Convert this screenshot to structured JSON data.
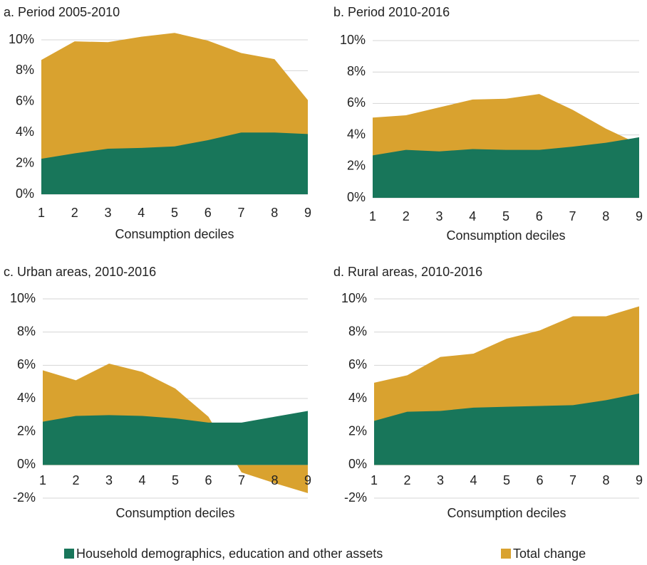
{
  "chart_data": [
    {
      "type": "area",
      "title": "a. Period 2005-2010",
      "xlabel": "Consumption deciles",
      "x": [
        1,
        2,
        3,
        4,
        5,
        6,
        7,
        8,
        9
      ],
      "xlim": [
        1,
        9
      ],
      "xticks": [
        1,
        2,
        3,
        4,
        5,
        6,
        7,
        8,
        9
      ],
      "ylim": [
        0,
        10
      ],
      "yticks": [
        {
          "value": 0,
          "label": "0%"
        },
        {
          "value": 2,
          "label": "2%"
        },
        {
          "value": 4,
          "label": "4%"
        },
        {
          "value": 6,
          "label": "6%"
        },
        {
          "value": 8,
          "label": "8%"
        },
        {
          "value": 10,
          "label": "10%"
        }
      ],
      "grid": true,
      "series": [
        {
          "name": "Household demographics, education and other assets",
          "color": "#18765a",
          "values": [
            2.3,
            2.65,
            2.95,
            3.0,
            3.1,
            3.5,
            4.0,
            4.0,
            3.9
          ]
        },
        {
          "name": "Total change",
          "color": "#d9a22f",
          "values": [
            8.7,
            9.9,
            9.85,
            10.2,
            10.45,
            9.95,
            9.15,
            8.75,
            6.1
          ]
        }
      ]
    },
    {
      "type": "area",
      "title": "b. Period 2010-2016",
      "xlabel": "Consumption deciles",
      "x": [
        1,
        2,
        3,
        4,
        5,
        6,
        7,
        8,
        9
      ],
      "xlim": [
        1,
        9
      ],
      "xticks": [
        1,
        2,
        3,
        4,
        5,
        6,
        7,
        8,
        9
      ],
      "ylim": [
        0,
        10
      ],
      "yticks": [
        {
          "value": 0,
          "label": "0%"
        },
        {
          "value": 2,
          "label": "2%"
        },
        {
          "value": 4,
          "label": "4%"
        },
        {
          "value": 6,
          "label": "6%"
        },
        {
          "value": 8,
          "label": "8%"
        },
        {
          "value": 10,
          "label": "10%"
        }
      ],
      "grid": true,
      "series": [
        {
          "name": "Household demographics, education and other assets",
          "color": "#18765a",
          "values": [
            2.7,
            3.05,
            2.95,
            3.1,
            3.05,
            3.05,
            3.25,
            3.5,
            3.85
          ]
        },
        {
          "name": "Total change",
          "color": "#d9a22f",
          "values": [
            5.1,
            5.25,
            5.75,
            6.25,
            6.3,
            6.6,
            5.6,
            4.4,
            3.4
          ]
        }
      ]
    },
    {
      "type": "area",
      "title": "c. Urban areas, 2010-2016",
      "xlabel": "Consumption deciles",
      "x": [
        1,
        2,
        3,
        4,
        5,
        6,
        7,
        8,
        9
      ],
      "xlim": [
        1,
        9
      ],
      "xticks": [
        1,
        2,
        3,
        4,
        5,
        6,
        7,
        8,
        9
      ],
      "ylim": [
        -2,
        10
      ],
      "yticks": [
        {
          "value": -2,
          "label": "-2%"
        },
        {
          "value": 0,
          "label": "0%"
        },
        {
          "value": 2,
          "label": "2%"
        },
        {
          "value": 4,
          "label": "4%"
        },
        {
          "value": 6,
          "label": "6%"
        },
        {
          "value": 8,
          "label": "8%"
        },
        {
          "value": 10,
          "label": "10%"
        }
      ],
      "grid": true,
      "series": [
        {
          "name": "Household demographics, education and other assets",
          "color": "#18765a",
          "values": [
            2.6,
            2.95,
            3.0,
            2.95,
            2.8,
            2.55,
            2.55,
            2.9,
            3.25
          ]
        },
        {
          "name": "Total change",
          "color": "#d9a22f",
          "values": [
            5.7,
            5.1,
            6.1,
            5.6,
            4.6,
            2.9,
            -0.45,
            -1.1,
            -1.7
          ]
        }
      ]
    },
    {
      "type": "area",
      "title": "d. Rural areas, 2010-2016",
      "xlabel": "Consumption deciles",
      "x": [
        1,
        2,
        3,
        4,
        5,
        6,
        7,
        8,
        9
      ],
      "xlim": [
        1,
        9
      ],
      "xticks": [
        1,
        2,
        3,
        4,
        5,
        6,
        7,
        8,
        9
      ],
      "ylim": [
        -2,
        10
      ],
      "yticks": [
        {
          "value": -2,
          "label": "-2%"
        },
        {
          "value": 0,
          "label": "0%"
        },
        {
          "value": 2,
          "label": "2%"
        },
        {
          "value": 4,
          "label": "4%"
        },
        {
          "value": 6,
          "label": "6%"
        },
        {
          "value": 8,
          "label": "8%"
        },
        {
          "value": 10,
          "label": "10%"
        }
      ],
      "grid": true,
      "series": [
        {
          "name": "Household demographics, education and other assets",
          "color": "#18765a",
          "values": [
            2.65,
            3.2,
            3.25,
            3.45,
            3.5,
            3.55,
            3.6,
            3.9,
            4.3
          ]
        },
        {
          "name": "Total change",
          "color": "#d9a22f",
          "values": [
            4.95,
            5.4,
            6.5,
            6.7,
            7.6,
            8.1,
            8.95,
            8.95,
            9.55
          ]
        }
      ]
    }
  ]
}
